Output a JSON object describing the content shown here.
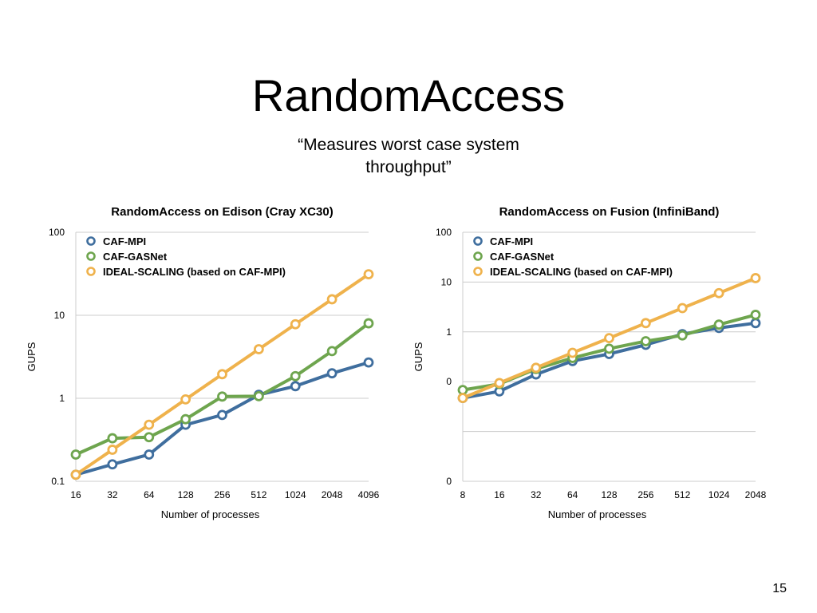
{
  "slide": {
    "title": "RandomAccess",
    "subtitle_line1": "“Measures worst case system",
    "subtitle_line2": "throughput”",
    "page_number": "15"
  },
  "colors": {
    "caf_mpi": "#3f6e9e",
    "caf_gasnet": "#6ea54e",
    "ideal": "#efb24c",
    "grid": "#cccccc"
  },
  "chart_data": [
    {
      "type": "line",
      "title": "RandomAccess on Edison (Cray XC30)",
      "xlabel": "Number of processes",
      "ylabel": "GUPS",
      "y_scale": "log",
      "ylim": [
        0.1,
        100
      ],
      "y_ticks": [
        0.1,
        1,
        10,
        100
      ],
      "y_tick_labels": [
        "0.1",
        "1",
        "10",
        "100"
      ],
      "categories": [
        "16",
        "32",
        "64",
        "128",
        "256",
        "512",
        "1024",
        "2048",
        "4096"
      ],
      "grid": "horizontal",
      "legend_position": "top-left",
      "series": [
        {
          "name": "CAF-MPI",
          "color_key": "caf_mpi",
          "values": [
            0.12,
            0.16,
            0.21,
            0.48,
            0.63,
            1.1,
            1.4,
            2.0,
            2.7
          ]
        },
        {
          "name": "CAF-GASNet",
          "color_key": "caf_gasnet",
          "values": [
            0.21,
            0.33,
            0.34,
            0.56,
            1.05,
            1.06,
            1.85,
            3.7,
            8.0
          ]
        },
        {
          "name": "IDEAL-SCALING (based on CAF-MPI)",
          "color_key": "ideal",
          "values": [
            0.12,
            0.24,
            0.48,
            0.97,
            1.95,
            3.9,
            7.8,
            15.6,
            31.2
          ]
        }
      ]
    },
    {
      "type": "line",
      "title": "RandomAccess on Fusion (InfiniBand)",
      "xlabel": "Number of processes",
      "ylabel": "GUPS",
      "y_scale": "log",
      "ylim": [
        0.001,
        100
      ],
      "y_ticks": [
        0.001,
        0.01,
        0.1,
        1,
        10,
        100
      ],
      "y_tick_labels": [
        "0",
        "",
        "0",
        "1",
        "10",
        "100"
      ],
      "categories": [
        "8",
        "16",
        "32",
        "64",
        "128",
        "256",
        "512",
        "1024",
        "2048"
      ],
      "grid": "horizontal",
      "legend_position": "top-left",
      "series": [
        {
          "name": "CAF-MPI",
          "color_key": "caf_mpi",
          "values": [
            0.047,
            0.064,
            0.14,
            0.26,
            0.36,
            0.55,
            0.9,
            1.2,
            1.5
          ]
        },
        {
          "name": "CAF-GASNet",
          "color_key": "caf_gasnet",
          "values": [
            0.068,
            0.09,
            0.18,
            0.3,
            0.46,
            0.65,
            0.85,
            1.4,
            2.2
          ]
        },
        {
          "name": "IDEAL-SCALING (based on CAF-MPI)",
          "color_key": "ideal",
          "values": [
            0.047,
            0.094,
            0.19,
            0.38,
            0.75,
            1.5,
            3.0,
            6.0,
            12.0
          ]
        }
      ]
    }
  ]
}
